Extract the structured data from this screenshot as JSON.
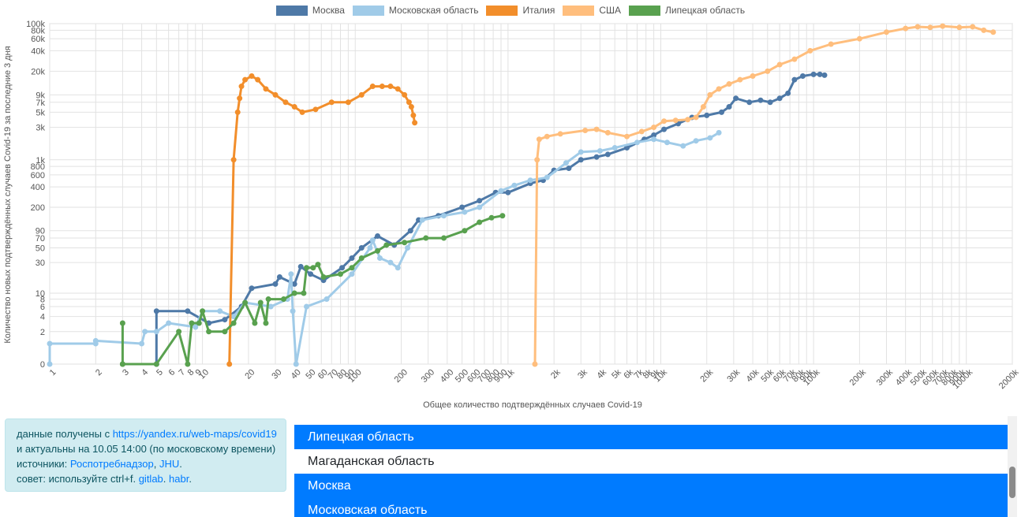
{
  "chart_data": {
    "type": "line",
    "xlabel": "Общее количество подтверждённых случаев Covid-19",
    "ylabel": "Количество новых подтверждённых случаев Covid-19 за последние 3 дня",
    "x_scale": "log",
    "y_scale": "log (symlog, 0 at bottom)",
    "xlim": [
      1,
      2000000
    ],
    "ylim": [
      0,
      100000
    ],
    "x_ticks": [
      {
        "v": 1,
        "label": "1"
      },
      {
        "v": 2,
        "label": "2"
      },
      {
        "v": 3,
        "label": "3"
      },
      {
        "v": 4,
        "label": "4"
      },
      {
        "v": 5,
        "label": "5"
      },
      {
        "v": 6,
        "label": "6"
      },
      {
        "v": 7,
        "label": "7"
      },
      {
        "v": 8,
        "label": "8"
      },
      {
        "v": 9,
        "label": "9"
      },
      {
        "v": 10,
        "label": "10"
      },
      {
        "v": 20,
        "label": "20"
      },
      {
        "v": 30,
        "label": "30"
      },
      {
        "v": 40,
        "label": "40"
      },
      {
        "v": 50,
        "label": "50"
      },
      {
        "v": 60,
        "label": "60"
      },
      {
        "v": 70,
        "label": "70"
      },
      {
        "v": 80,
        "label": "80"
      },
      {
        "v": 90,
        "label": "90"
      },
      {
        "v": 100,
        "label": "100"
      },
      {
        "v": 200,
        "label": "200"
      },
      {
        "v": 300,
        "label": "300"
      },
      {
        "v": 400,
        "label": "400"
      },
      {
        "v": 500,
        "label": "500"
      },
      {
        "v": 600,
        "label": "600"
      },
      {
        "v": 700,
        "label": "700"
      },
      {
        "v": 800,
        "label": "800"
      },
      {
        "v": 900,
        "label": "900"
      },
      {
        "v": 1000,
        "label": "1k"
      },
      {
        "v": 2000,
        "label": "2k"
      },
      {
        "v": 3000,
        "label": "3k"
      },
      {
        "v": 4000,
        "label": "4k"
      },
      {
        "v": 5000,
        "label": "5k"
      },
      {
        "v": 6000,
        "label": "6k"
      },
      {
        "v": 7000,
        "label": "7k"
      },
      {
        "v": 8000,
        "label": "8k"
      },
      {
        "v": 9000,
        "label": "9k"
      },
      {
        "v": 10000,
        "label": "10k"
      },
      {
        "v": 20000,
        "label": "20k"
      },
      {
        "v": 30000,
        "label": "30k"
      },
      {
        "v": 40000,
        "label": "40k"
      },
      {
        "v": 50000,
        "label": "50k"
      },
      {
        "v": 60000,
        "label": "60k"
      },
      {
        "v": 70000,
        "label": "70k"
      },
      {
        "v": 80000,
        "label": "80k"
      },
      {
        "v": 90000,
        "label": "90k"
      },
      {
        "v": 100000,
        "label": "100k"
      },
      {
        "v": 200000,
        "label": "200k"
      },
      {
        "v": 300000,
        "label": "300k"
      },
      {
        "v": 400000,
        "label": "400k"
      },
      {
        "v": 500000,
        "label": "500k"
      },
      {
        "v": 600000,
        "label": "600k"
      },
      {
        "v": 700000,
        "label": "700k"
      },
      {
        "v": 800000,
        "label": "800k"
      },
      {
        "v": 900000,
        "label": "900k"
      },
      {
        "v": 1000000,
        "label": "1000k"
      },
      {
        "v": 2000000,
        "label": "2000k"
      }
    ],
    "y_ticks": [
      {
        "v": 0,
        "label": "0"
      },
      {
        "v": 2,
        "label": "2"
      },
      {
        "v": 4,
        "label": "4"
      },
      {
        "v": 6,
        "label": "6"
      },
      {
        "v": 8,
        "label": "8"
      },
      {
        "v": 10,
        "label": "10"
      },
      {
        "v": 30,
        "label": "30"
      },
      {
        "v": 50,
        "label": "50"
      },
      {
        "v": 70,
        "label": "70"
      },
      {
        "v": 90,
        "label": "90"
      },
      {
        "v": 200,
        "label": "200"
      },
      {
        "v": 400,
        "label": "400"
      },
      {
        "v": 600,
        "label": "600"
      },
      {
        "v": 800,
        "label": "800"
      },
      {
        "v": 1000,
        "label": "1k"
      },
      {
        "v": 3000,
        "label": "3k"
      },
      {
        "v": 5000,
        "label": "5k"
      },
      {
        "v": 7000,
        "label": "7k"
      },
      {
        "v": 9000,
        "label": "9k"
      },
      {
        "v": 20000,
        "label": "20k"
      },
      {
        "v": 40000,
        "label": "40k"
      },
      {
        "v": 60000,
        "label": "60k"
      },
      {
        "v": 80000,
        "label": "80k"
      },
      {
        "v": 100000,
        "label": "100k"
      }
    ],
    "grid": true,
    "legend_position": "top-center",
    "series": [
      {
        "name": "Москва",
        "color": "#4e79a7",
        "points": [
          [
            5,
            0
          ],
          [
            5,
            5
          ],
          [
            8,
            5
          ],
          [
            11,
            3
          ],
          [
            14,
            3.5
          ],
          [
            18,
            6
          ],
          [
            21,
            12
          ],
          [
            30,
            14
          ],
          [
            32,
            18
          ],
          [
            40,
            14
          ],
          [
            44,
            26
          ],
          [
            51,
            20
          ],
          [
            62,
            16
          ],
          [
            82,
            25
          ],
          [
            95,
            35
          ],
          [
            110,
            50
          ],
          [
            140,
            75
          ],
          [
            180,
            55
          ],
          [
            230,
            90
          ],
          [
            260,
            130
          ],
          [
            350,
            150
          ],
          [
            500,
            200
          ],
          [
            650,
            250
          ],
          [
            830,
            330
          ],
          [
            1000,
            330
          ],
          [
            1400,
            450
          ],
          [
            1700,
            500
          ],
          [
            2000,
            700
          ],
          [
            2500,
            750
          ],
          [
            3000,
            1000
          ],
          [
            3800,
            1100
          ],
          [
            4500,
            1200
          ],
          [
            6000,
            1500
          ],
          [
            7800,
            2000
          ],
          [
            9000,
            2300
          ],
          [
            10500,
            2800
          ],
          [
            13000,
            3400
          ],
          [
            16000,
            4200
          ],
          [
            20000,
            4500
          ],
          [
            25000,
            5000
          ],
          [
            28000,
            6000
          ],
          [
            31000,
            8000
          ],
          [
            38000,
            7000
          ],
          [
            45000,
            7500
          ],
          [
            52000,
            7000
          ],
          [
            60000,
            8000
          ],
          [
            68000,
            9500
          ],
          [
            75000,
            15000
          ],
          [
            85000,
            17000
          ],
          [
            100000,
            18000
          ],
          [
            110000,
            18000
          ],
          [
            118000,
            17500
          ]
        ]
      },
      {
        "name": "Московская область",
        "color": "#a0cbe8",
        "points": [
          [
            1,
            0
          ],
          [
            1,
            1
          ],
          [
            2,
            1
          ],
          [
            2,
            1.2
          ],
          [
            4,
            1
          ],
          [
            4.2,
            2
          ],
          [
            5,
            2
          ],
          [
            6,
            3
          ],
          [
            9,
            2.5
          ],
          [
            10,
            5
          ],
          [
            13,
            5
          ],
          [
            16,
            4
          ],
          [
            19,
            7
          ],
          [
            28,
            6
          ],
          [
            36,
            8
          ],
          [
            38,
            20
          ],
          [
            39,
            5
          ],
          [
            41,
            0
          ],
          [
            48,
            6
          ],
          [
            65,
            8
          ],
          [
            95,
            20
          ],
          [
            125,
            50
          ],
          [
            130,
            65
          ],
          [
            145,
            35
          ],
          [
            170,
            30
          ],
          [
            190,
            25
          ],
          [
            220,
            50
          ],
          [
            275,
            130
          ],
          [
            380,
            150
          ],
          [
            520,
            170
          ],
          [
            650,
            200
          ],
          [
            900,
            350
          ],
          [
            1100,
            420
          ],
          [
            1400,
            500
          ],
          [
            1800,
            550
          ],
          [
            2400,
            900
          ],
          [
            3000,
            1300
          ],
          [
            4000,
            1350
          ],
          [
            5000,
            1500
          ],
          [
            7000,
            1800
          ],
          [
            9000,
            2000
          ],
          [
            11000,
            1800
          ],
          [
            14000,
            1600
          ],
          [
            17000,
            1900
          ],
          [
            21000,
            2100
          ],
          [
            24000,
            2500
          ]
        ]
      },
      {
        "name": "Италия",
        "color": "#f28e2b",
        "points": [
          [
            15,
            0
          ],
          [
            16,
            1000
          ],
          [
            17,
            5000
          ],
          [
            17.5,
            8000
          ],
          [
            18,
            12000
          ],
          [
            19,
            15000
          ],
          [
            21,
            17000
          ],
          [
            23,
            15000
          ],
          [
            26,
            11000
          ],
          [
            30,
            9000
          ],
          [
            35,
            7000
          ],
          [
            40,
            6000
          ],
          [
            45,
            5000
          ],
          [
            55,
            5500
          ],
          [
            70,
            7000
          ],
          [
            90,
            7000
          ],
          [
            110,
            9000
          ],
          [
            130,
            12000
          ],
          [
            150,
            12000
          ],
          [
            170,
            12000
          ],
          [
            190,
            11000
          ],
          [
            210,
            9000
          ],
          [
            225,
            7000
          ],
          [
            233,
            6000
          ],
          [
            240,
            4500
          ],
          [
            245,
            3500
          ]
        ]
      },
      {
        "name": "США",
        "color": "#ffbe7d",
        "points": [
          [
            1500,
            0
          ],
          [
            1550,
            1000
          ],
          [
            1600,
            2000
          ],
          [
            1800,
            2200
          ],
          [
            2200,
            2400
          ],
          [
            3200,
            2700
          ],
          [
            3800,
            2800
          ],
          [
            4500,
            2500
          ],
          [
            6000,
            2200
          ],
          [
            7500,
            2600
          ],
          [
            9000,
            3000
          ],
          [
            10500,
            3700
          ],
          [
            12500,
            3800
          ],
          [
            15000,
            3900
          ],
          [
            17000,
            4200
          ],
          [
            19000,
            6000
          ],
          [
            21000,
            9000
          ],
          [
            24000,
            11000
          ],
          [
            28000,
            13000
          ],
          [
            33000,
            15000
          ],
          [
            40000,
            17000
          ],
          [
            50000,
            20000
          ],
          [
            60000,
            25000
          ],
          [
            75000,
            30000
          ],
          [
            95000,
            40000
          ],
          [
            130000,
            50000
          ],
          [
            200000,
            60000
          ],
          [
            300000,
            75000
          ],
          [
            400000,
            85000
          ],
          [
            480000,
            90000
          ],
          [
            580000,
            88000
          ],
          [
            700000,
            92000
          ],
          [
            900000,
            88000
          ],
          [
            1100000,
            90000
          ],
          [
            1300000,
            80000
          ],
          [
            1500000,
            75000
          ]
        ]
      },
      {
        "name": "Липецкая область",
        "color": "#59a14f",
        "points": [
          [
            3,
            0
          ],
          [
            3,
            3
          ],
          [
            3,
            0
          ],
          [
            5,
            0
          ],
          [
            7,
            2
          ],
          [
            8,
            0
          ],
          [
            8.5,
            3
          ],
          [
            9.5,
            3
          ],
          [
            10,
            5
          ],
          [
            11,
            2
          ],
          [
            14,
            2
          ],
          [
            16,
            3
          ],
          [
            19,
            7
          ],
          [
            22,
            3
          ],
          [
            24,
            7
          ],
          [
            26,
            3
          ],
          [
            27,
            8
          ],
          [
            34,
            8
          ],
          [
            40,
            10
          ],
          [
            46,
            10
          ],
          [
            48,
            25
          ],
          [
            53,
            25
          ],
          [
            57,
            28
          ],
          [
            62,
            18
          ],
          [
            80,
            20
          ],
          [
            95,
            25
          ],
          [
            110,
            35
          ],
          [
            140,
            45
          ],
          [
            160,
            55
          ],
          [
            210,
            60
          ],
          [
            290,
            70
          ],
          [
            380,
            70
          ],
          [
            520,
            90
          ],
          [
            650,
            120
          ],
          [
            780,
            140
          ],
          [
            920,
            150
          ]
        ]
      }
    ]
  },
  "info": {
    "line1_prefix": "данные получены с ",
    "line1_link": "https://yandex.ru/web-maps/covid19",
    "line2": "и актуальны на 10.05 14:00 (по московскому времени)",
    "line3_prefix": "источники: ",
    "line3_link1": "Роспотребнадзор",
    "line3_sep": ", ",
    "line3_link2": "JHU",
    "line3_end": ".",
    "line4_prefix": "совет: используйте ctrl+f. ",
    "line4_link1": "gitlab",
    "line4_sep": ". ",
    "line4_link2": "habr",
    "line4_end": "."
  },
  "region_list": {
    "items": [
      {
        "label": "Липецкая область",
        "selected": true
      },
      {
        "label": "Магаданская область",
        "selected": false
      },
      {
        "label": "Москва",
        "selected": true
      },
      {
        "label": "Московская область",
        "selected": true
      }
    ]
  }
}
